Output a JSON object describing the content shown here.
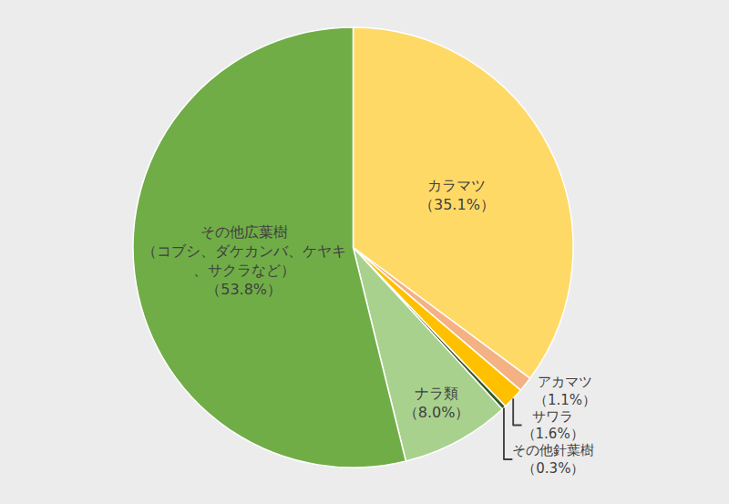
{
  "chart_data": {
    "type": "pie",
    "categories": [
      "カラマツ",
      "アカマツ",
      "サワラ",
      "その他針葉樹",
      "ナラ類",
      "その他広葉樹（コブシ、ダケカンバ、ケヤキ、サクラなど）"
    ],
    "values": [
      35.1,
      1.1,
      1.6,
      0.3,
      8.0,
      53.8
    ],
    "value_labels": [
      "（35.1%）",
      "（1.1%）",
      "（1.6%）",
      "（0.3%）",
      "（8.0%）",
      "（53.8%）"
    ],
    "colors": [
      "#ffd966",
      "#f4b183",
      "#ffc000",
      "#375623",
      "#a9d18e",
      "#70ad47"
    ],
    "data_labels": true
  }
}
